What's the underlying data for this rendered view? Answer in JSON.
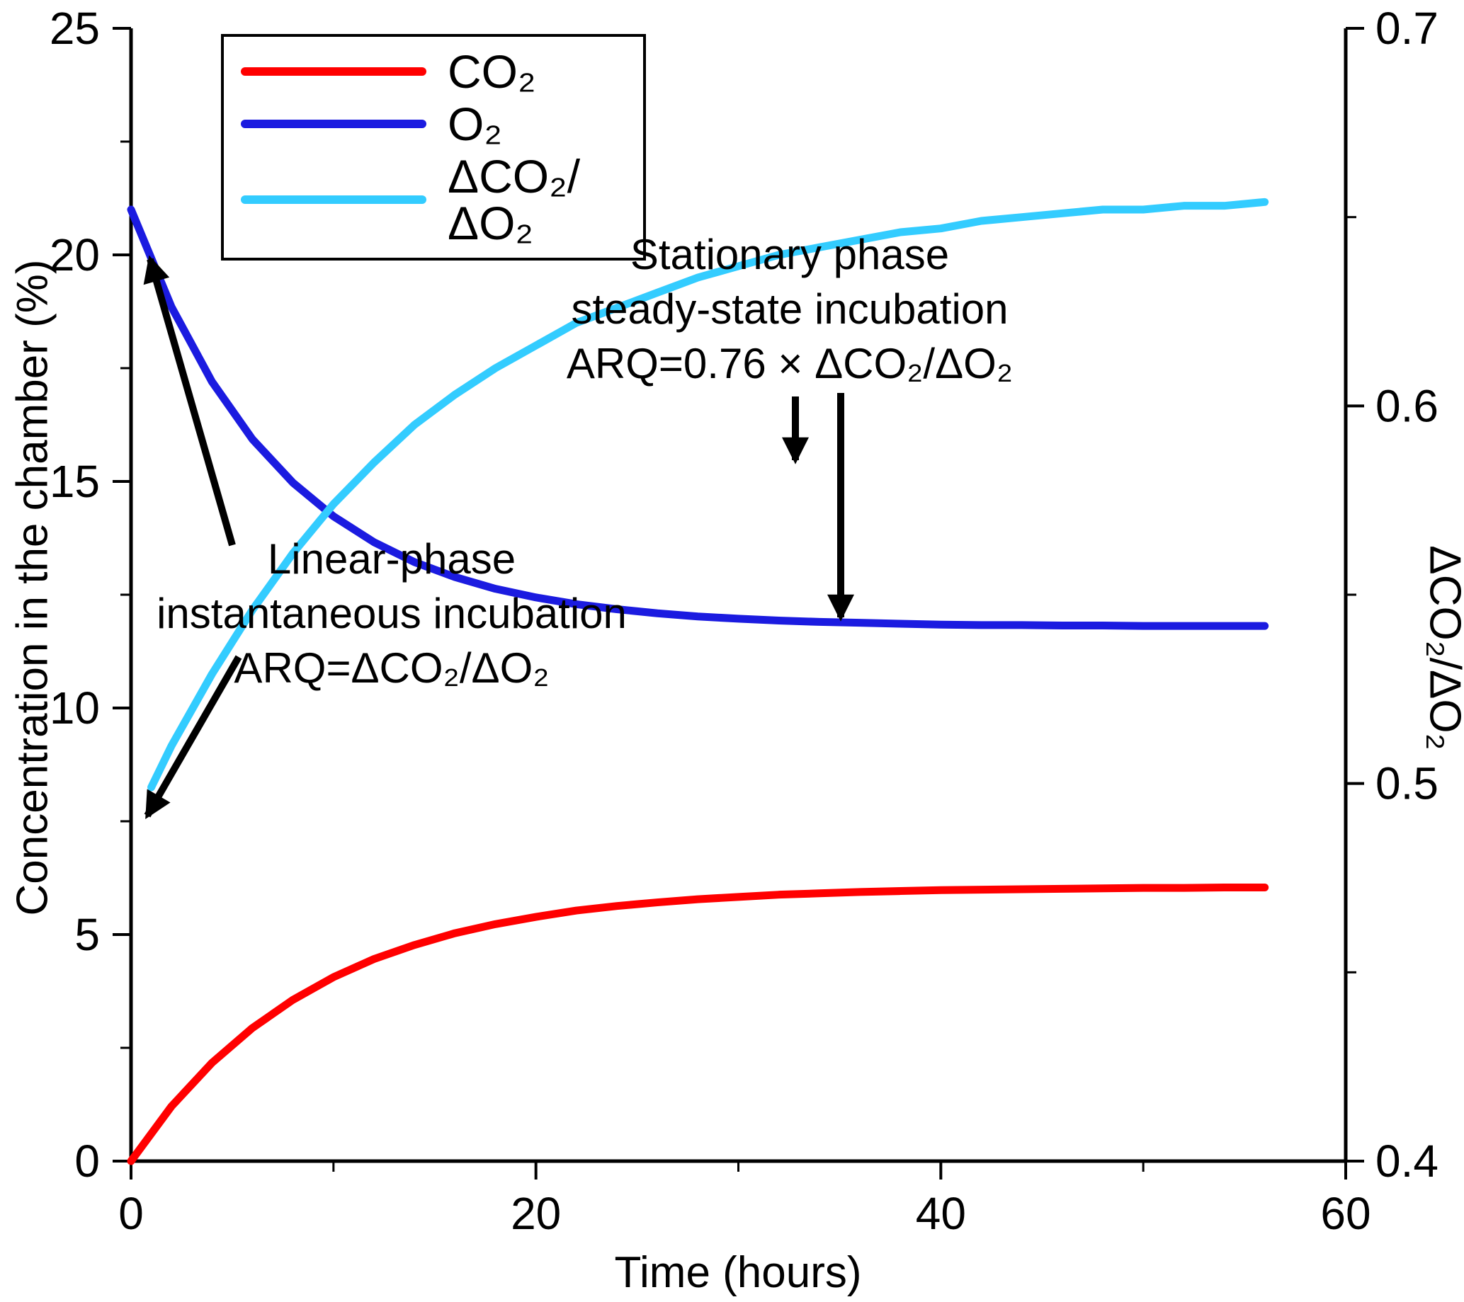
{
  "figure": {
    "background": "#ffffff"
  },
  "axis_labels": {
    "x": "Time (hours)",
    "y_left": "Concentration in the chamber (%)",
    "y_right": "ΔCO₂/ΔO₂"
  },
  "legend": {
    "items": [
      {
        "label": "CO₂",
        "color": "#ff0000"
      },
      {
        "label": "O₂",
        "color": "#1b1be0"
      },
      {
        "label": "ΔCO₂/ΔO₂",
        "color": "#33ccff"
      }
    ]
  },
  "annotations": {
    "stationary": {
      "line1": "Stationary phase",
      "line2": "steady-state incubation",
      "line3": "ARQ=0.76 × ΔCO₂/ΔO₂"
    },
    "linear": {
      "line1": "Linear-phase",
      "line2": "instantaneous incubation",
      "line3": "ARQ=ΔCO₂/ΔO₂"
    }
  },
  "chart_data": {
    "type": "line",
    "xlabel": "Time (hours)",
    "ylabel_left": "Concentration in the chamber (%)",
    "ylabel_right": "ΔCO₂/ΔO₂",
    "xlim": [
      0,
      60
    ],
    "ylim_left": [
      0,
      25
    ],
    "ylim_right": [
      0.4,
      0.7
    ],
    "grid": false,
    "legend_position": "upper-left",
    "x_ticks": {
      "values": [
        0,
        20,
        40,
        60
      ],
      "labels": [
        "0",
        "20",
        "40",
        "60"
      ],
      "minor": [
        10,
        30,
        50
      ]
    },
    "y_ticks_left": {
      "values": [
        0,
        5,
        10,
        15,
        20,
        25
      ],
      "labels": [
        "0",
        "5",
        "10",
        "15",
        "20",
        "25"
      ],
      "minor": [
        2.5,
        7.5,
        12.5,
        17.5,
        22.5
      ]
    },
    "y_ticks_right": {
      "values": [
        0.4,
        0.5,
        0.6,
        0.7
      ],
      "labels": [
        "0.4",
        "0.5",
        "0.6",
        "0.7"
      ],
      "minor": [
        0.45,
        0.55,
        0.65
      ]
    },
    "series": [
      {
        "name": "CO₂",
        "axis": "left",
        "color": "#ff0000",
        "x": [
          0,
          2,
          4,
          6,
          8,
          10,
          12,
          14,
          16,
          18,
          20,
          22,
          24,
          26,
          28,
          30,
          32,
          34,
          36,
          38,
          40,
          42,
          44,
          46,
          48,
          50,
          52,
          54,
          56
        ],
        "y": [
          0.0,
          1.21,
          2.17,
          2.94,
          3.56,
          4.06,
          4.46,
          4.77,
          5.03,
          5.23,
          5.39,
          5.53,
          5.63,
          5.71,
          5.78,
          5.83,
          5.88,
          5.91,
          5.94,
          5.96,
          5.98,
          5.99,
          6.0,
          6.01,
          6.02,
          6.03,
          6.03,
          6.04,
          6.04
        ]
      },
      {
        "name": "O₂",
        "axis": "left",
        "color": "#1b1be0",
        "x": [
          0,
          2,
          4,
          6,
          8,
          10,
          12,
          14,
          16,
          18,
          20,
          22,
          24,
          26,
          28,
          30,
          32,
          34,
          36,
          38,
          40,
          42,
          44,
          46,
          48,
          50,
          52,
          54,
          56
        ],
        "y": [
          21.0,
          18.85,
          17.2,
          15.93,
          14.97,
          14.23,
          13.66,
          13.22,
          12.89,
          12.63,
          12.44,
          12.29,
          12.18,
          12.09,
          12.02,
          11.97,
          11.93,
          11.9,
          11.88,
          11.86,
          11.84,
          11.83,
          11.83,
          11.82,
          11.82,
          11.81,
          11.81,
          11.81,
          11.81
        ]
      },
      {
        "name": "ΔCO₂/ΔO₂",
        "axis": "right",
        "color": "#33ccff",
        "x": [
          1,
          2,
          4,
          6,
          8,
          10,
          12,
          14,
          16,
          18,
          20,
          22,
          24,
          26,
          28,
          30,
          32,
          34,
          36,
          38,
          40,
          42,
          44,
          46,
          48,
          50,
          52,
          54,
          56
        ],
        "y": [
          0.499,
          0.51,
          0.529,
          0.546,
          0.561,
          0.574,
          0.585,
          0.595,
          0.603,
          0.61,
          0.616,
          0.622,
          0.626,
          0.63,
          0.634,
          0.637,
          0.64,
          0.642,
          0.644,
          0.646,
          0.647,
          0.649,
          0.65,
          0.651,
          0.652,
          0.652,
          0.653,
          0.653,
          0.654
        ]
      }
    ],
    "arrows": [
      {
        "name": "linear-to-o2-start",
        "from": [
          328,
          770
        ],
        "to": [
          212,
          366
        ]
      },
      {
        "name": "linear-to-co2-start",
        "from": [
          337,
          928
        ],
        "to": [
          208,
          1152
        ]
      },
      {
        "name": "stationary-short",
        "from": [
          1123,
          560
        ],
        "to": [
          1123,
          650
        ]
      },
      {
        "name": "stationary-to-o2-plateau",
        "from": [
          1187,
          555
        ],
        "to": [
          1187,
          872
        ]
      }
    ]
  }
}
